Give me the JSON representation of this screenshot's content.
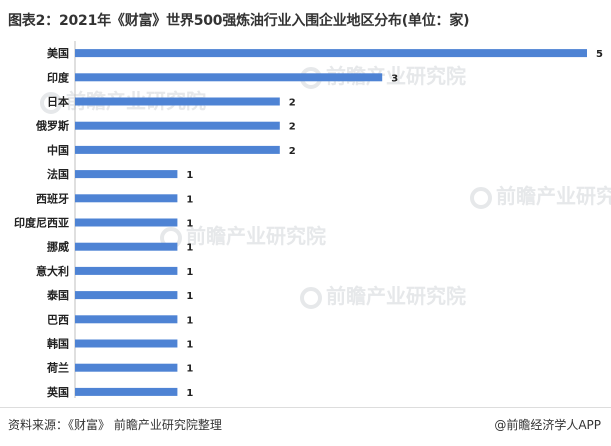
{
  "title": "图表2：2021年《财富》世界500强炼油行业入围企业地区分布(单位：家)",
  "watermark": "前瞻产业研究院",
  "footer": {
    "source": "资料来源：《财富》 前瞻产业研究院整理",
    "credit": "@前瞻经济学人APP"
  },
  "colors": {
    "bar": "#4e83d4",
    "axis": "#bfbfbf"
  },
  "chart_data": {
    "type": "bar",
    "orientation": "horizontal",
    "categories": [
      "美国",
      "印度",
      "日本",
      "俄罗斯",
      "中国",
      "法国",
      "西班牙",
      "印度尼西亚",
      "挪威",
      "意大利",
      "泰国",
      "巴西",
      "韩国",
      "荷兰",
      "英国"
    ],
    "values": [
      5,
      3,
      2,
      2,
      2,
      1,
      1,
      1,
      1,
      1,
      1,
      1,
      1,
      1,
      1
    ],
    "xlim": [
      0,
      5
    ],
    "grid": false,
    "legend": "none"
  }
}
